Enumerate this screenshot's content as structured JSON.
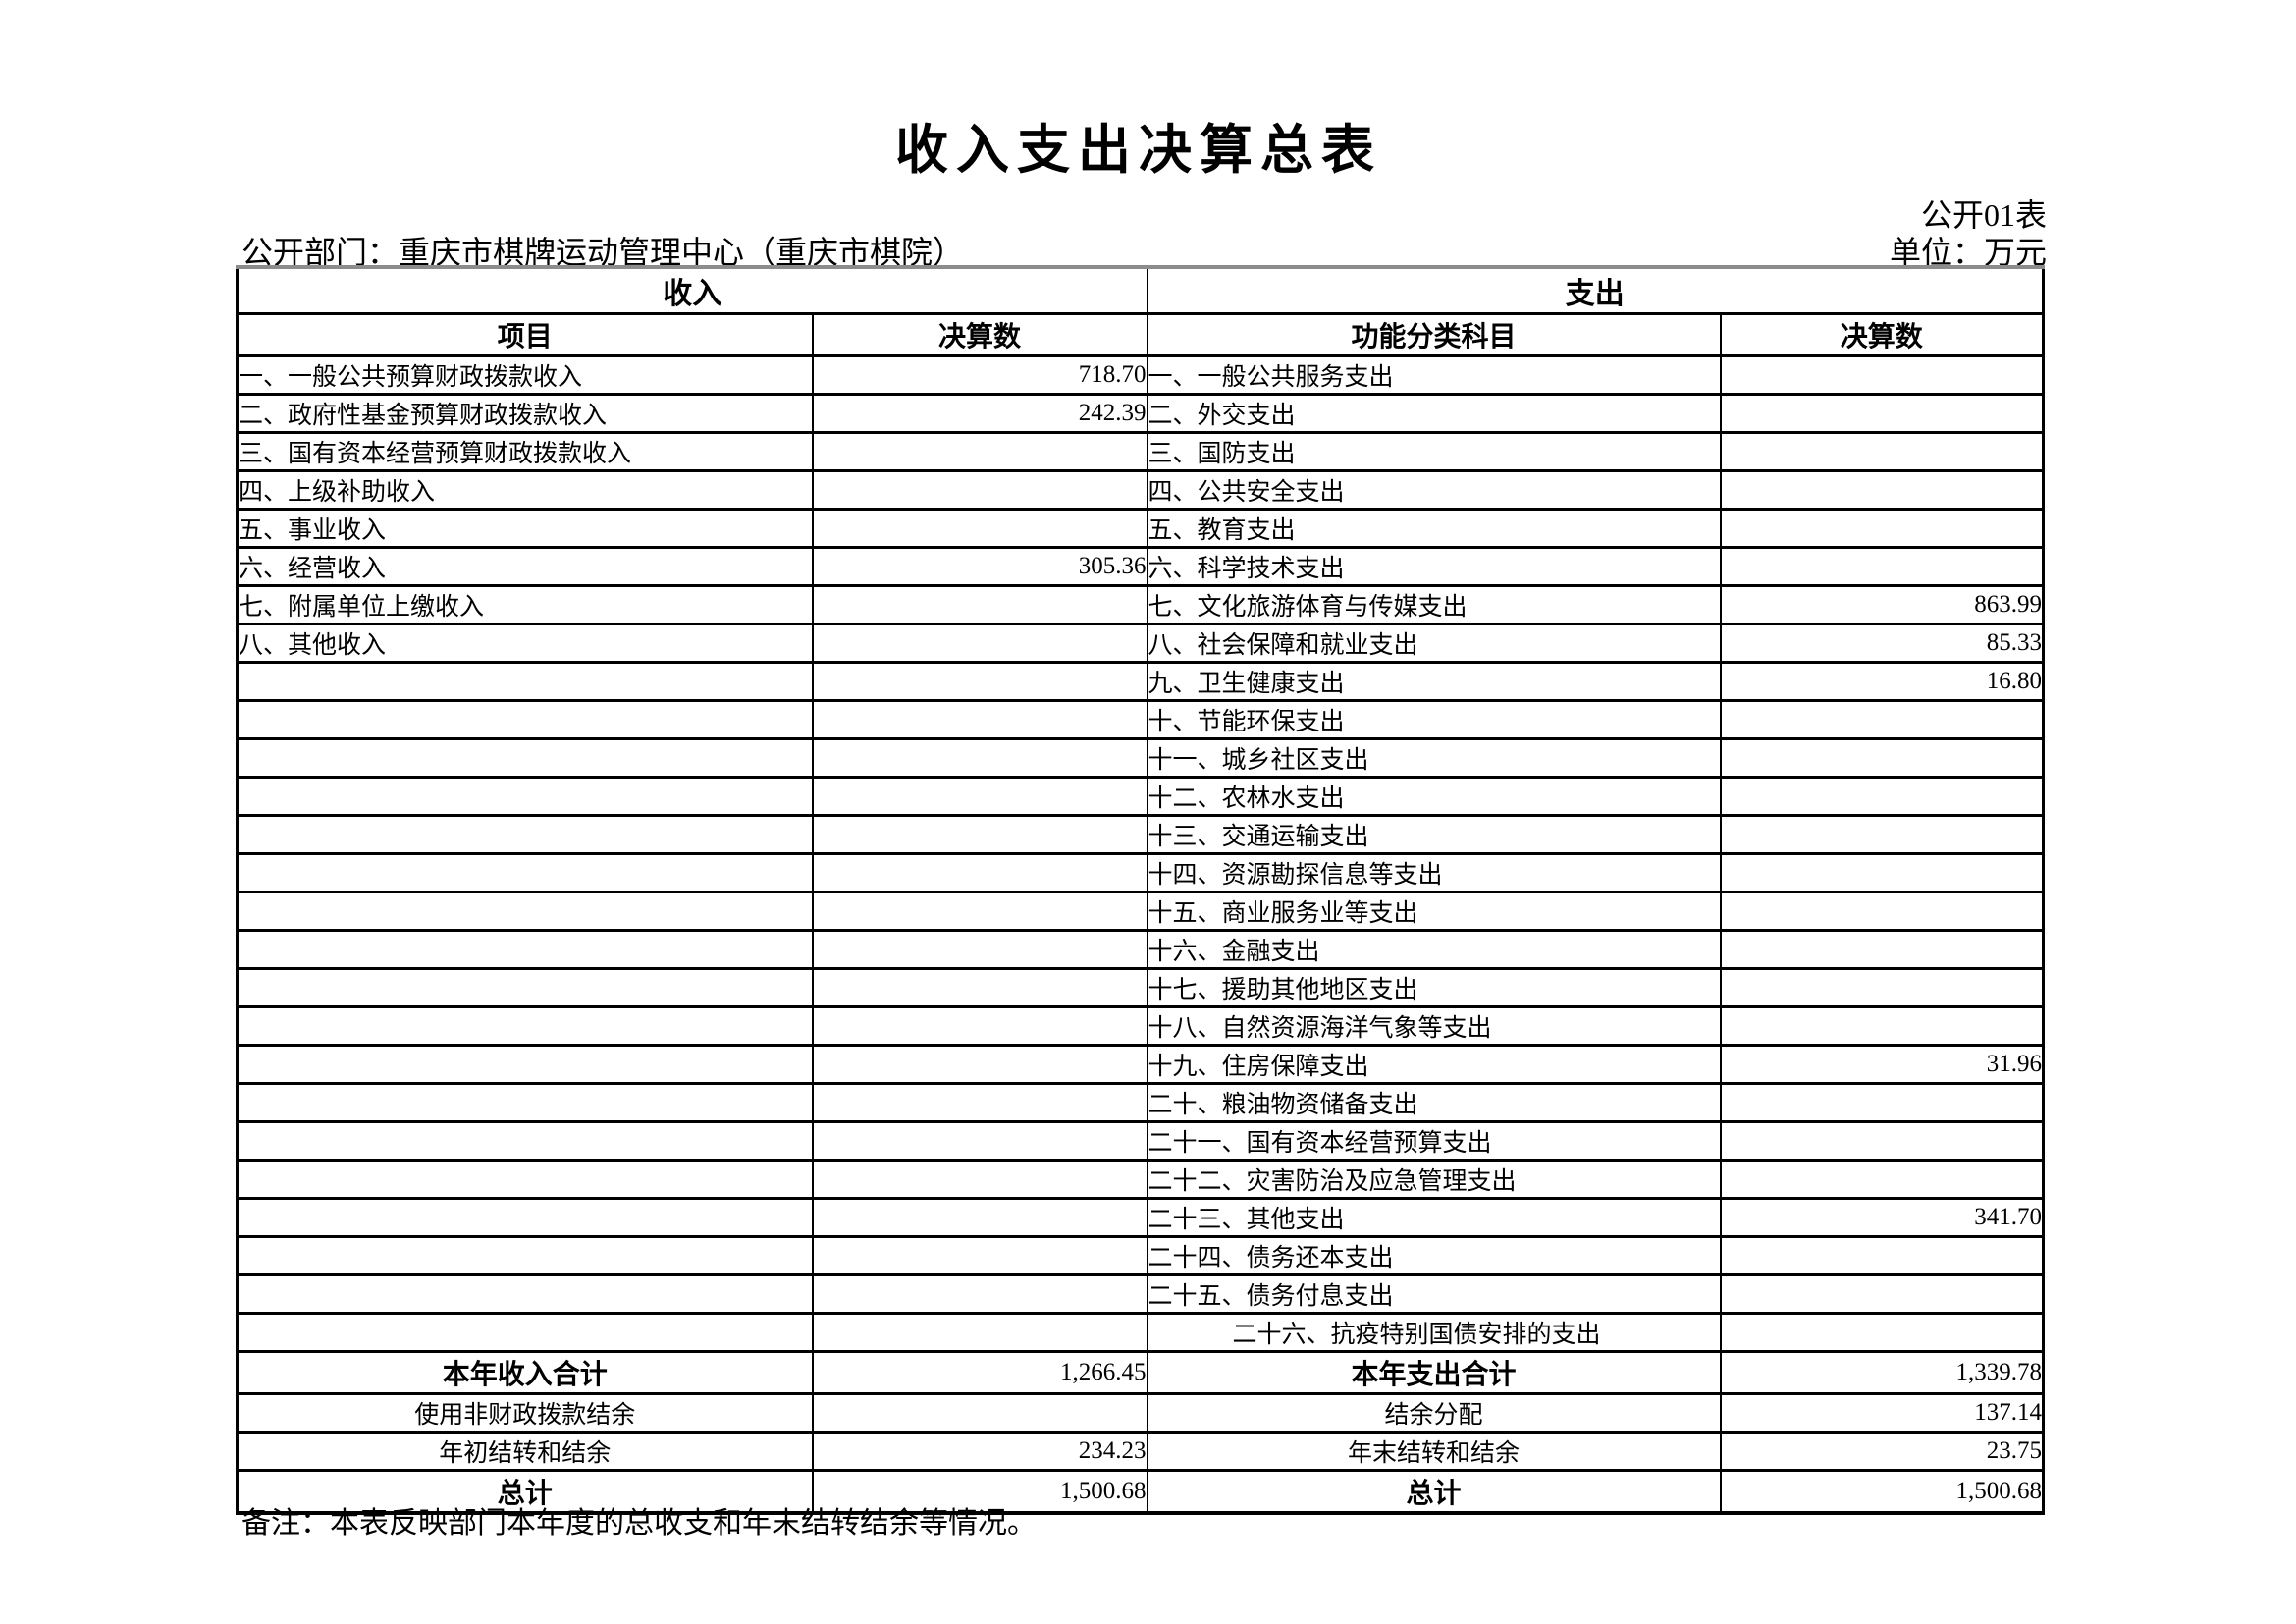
{
  "page": {
    "title": "收入支出决算总表",
    "table_code": "公开01表",
    "department_label": "公开部门：重庆市棋牌运动管理中心（重庆市棋院）",
    "unit_label": "单位：万元",
    "remark": "备注：本表反映部门本年度的总收支和年末结转结余等情况。"
  },
  "table": {
    "income_header": "收入",
    "expense_header": "支出",
    "columns": [
      "项目",
      "决算数",
      "功能分类科目",
      "决算数"
    ],
    "rows": [
      {
        "income_item": "一、一般公共预算财政拨款收入",
        "income_value": "718.70",
        "expense_item": "一、一般公共服务支出",
        "expense_value": ""
      },
      {
        "income_item": "二、政府性基金预算财政拨款收入",
        "income_value": "242.39",
        "expense_item": "二、外交支出",
        "expense_value": ""
      },
      {
        "income_item": "三、国有资本经营预算财政拨款收入",
        "income_value": "",
        "expense_item": "三、国防支出",
        "expense_value": ""
      },
      {
        "income_item": "四、上级补助收入",
        "income_value": "",
        "expense_item": "四、公共安全支出",
        "expense_value": ""
      },
      {
        "income_item": "五、事业收入",
        "income_value": "",
        "expense_item": "五、教育支出",
        "expense_value": ""
      },
      {
        "income_item": "六、经营收入",
        "income_value": "305.36",
        "expense_item": "六、科学技术支出",
        "expense_value": ""
      },
      {
        "income_item": "七、附属单位上缴收入",
        "income_value": "",
        "expense_item": "七、文化旅游体育与传媒支出",
        "expense_value": "863.99"
      },
      {
        "income_item": "八、其他收入",
        "income_value": "",
        "expense_item": "八、社会保障和就业支出",
        "expense_value": "85.33"
      },
      {
        "income_item": "",
        "income_value": "",
        "expense_item": "九、卫生健康支出",
        "expense_value": "16.80"
      },
      {
        "income_item": "",
        "income_value": "",
        "expense_item": "十、节能环保支出",
        "expense_value": ""
      },
      {
        "income_item": "",
        "income_value": "",
        "expense_item": "十一、城乡社区支出",
        "expense_value": ""
      },
      {
        "income_item": "",
        "income_value": "",
        "expense_item": "十二、农林水支出",
        "expense_value": ""
      },
      {
        "income_item": "",
        "income_value": "",
        "expense_item": "十三、交通运输支出",
        "expense_value": ""
      },
      {
        "income_item": "",
        "income_value": "",
        "expense_item": "十四、资源勘探信息等支出",
        "expense_value": ""
      },
      {
        "income_item": "",
        "income_value": "",
        "expense_item": "十五、商业服务业等支出",
        "expense_value": ""
      },
      {
        "income_item": "",
        "income_value": "",
        "expense_item": "十六、金融支出",
        "expense_value": ""
      },
      {
        "income_item": "",
        "income_value": "",
        "expense_item": "十七、援助其他地区支出",
        "expense_value": ""
      },
      {
        "income_item": "",
        "income_value": "",
        "expense_item": "十八、自然资源海洋气象等支出",
        "expense_value": ""
      },
      {
        "income_item": "",
        "income_value": "",
        "expense_item": "十九、住房保障支出",
        "expense_value": "31.96"
      },
      {
        "income_item": "",
        "income_value": "",
        "expense_item": "二十、粮油物资储备支出",
        "expense_value": ""
      },
      {
        "income_item": "",
        "income_value": "",
        "expense_item": "二十一、国有资本经营预算支出",
        "expense_value": ""
      },
      {
        "income_item": "",
        "income_value": "",
        "expense_item": "二十二、灾害防治及应急管理支出",
        "expense_value": ""
      },
      {
        "income_item": "",
        "income_value": "",
        "expense_item": "二十三、其他支出",
        "expense_value": "341.70"
      },
      {
        "income_item": "",
        "income_value": "",
        "expense_item": "二十四、债务还本支出",
        "expense_value": ""
      },
      {
        "income_item": "",
        "income_value": "",
        "expense_item": "二十五、债务付息支出",
        "expense_value": ""
      },
      {
        "income_item": "",
        "income_value": "",
        "expense_item": "二十六、抗疫特别国债安排的支出",
        "expense_value": "",
        "expense_indent": true
      }
    ],
    "summary_rows": [
      {
        "income_label": "本年收入合计",
        "income_value": "1,266.45",
        "expense_label": "本年支出合计",
        "expense_value": "1,339.78",
        "bold": true
      },
      {
        "income_label": "使用非财政拨款结余",
        "income_value": "",
        "expense_label": "结余分配",
        "expense_value": "137.14",
        "bold": false
      },
      {
        "income_label": "年初结转和结余",
        "income_value": "234.23",
        "expense_label": "年末结转和结余",
        "expense_value": "23.75",
        "bold": false
      },
      {
        "income_label": "总计",
        "income_value": "1,500.68",
        "expense_label": "总计",
        "expense_value": "1,500.68",
        "bold": true
      }
    ]
  }
}
